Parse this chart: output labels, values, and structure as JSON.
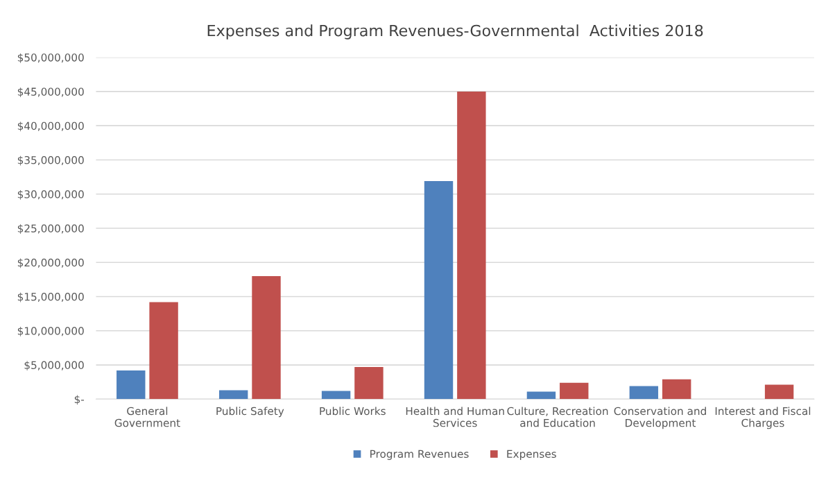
{
  "chart_data": {
    "type": "bar",
    "title": "Expenses and Program Revenues-Governmental  Activities 2018",
    "categories": [
      "General\nGovernment",
      "Public Safety",
      "Public Works",
      "Health and Human\nServices",
      "Culture, Recreation\nand Education",
      "Conservation and\nDevelopment",
      "Interest and Fiscal\nCharges"
    ],
    "series": [
      {
        "name": "Program Revenues",
        "color": "#4f81bd",
        "values": [
          4200000,
          1300000,
          1200000,
          31900000,
          1100000,
          1900000,
          null
        ]
      },
      {
        "name": "Expenses",
        "color": "#c0504d",
        "values": [
          14200000,
          18000000,
          4700000,
          45000000,
          2400000,
          2900000,
          2100000
        ]
      }
    ],
    "ylim": [
      0,
      50000000
    ],
    "yticks": [
      {
        "value": 0,
        "label": "$-"
      },
      {
        "value": 5000000,
        "label": "$5,000,000"
      },
      {
        "value": 10000000,
        "label": "$10,000,000"
      },
      {
        "value": 15000000,
        "label": "$15,000,000"
      },
      {
        "value": 20000000,
        "label": "$20,000,000"
      },
      {
        "value": 25000000,
        "label": "$25,000,000"
      },
      {
        "value": 30000000,
        "label": "$30,000,000"
      },
      {
        "value": 35000000,
        "label": "$35,000,000"
      },
      {
        "value": 40000000,
        "label": "$40,000,000"
      },
      {
        "value": 45000000,
        "label": "$45,000,000"
      },
      {
        "value": 50000000,
        "label": "$50,000,000"
      }
    ],
    "grid": "y",
    "legend": "bottom"
  }
}
